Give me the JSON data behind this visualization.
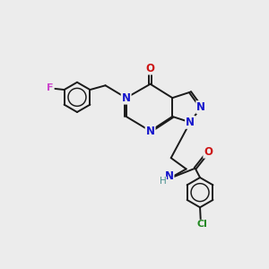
{
  "bg_color": "#ececec",
  "bond_color": "#1a1a1a",
  "N_color": "#1414cc",
  "O_color": "#cc1414",
  "F_color": "#cc44cc",
  "Cl_color": "#228822",
  "H_color": "#4a9090",
  "lw": 1.4,
  "lw_thin": 0.9,
  "fs": 7.5,
  "xlim": [
    0,
    10
  ],
  "ylim": [
    0,
    10
  ]
}
